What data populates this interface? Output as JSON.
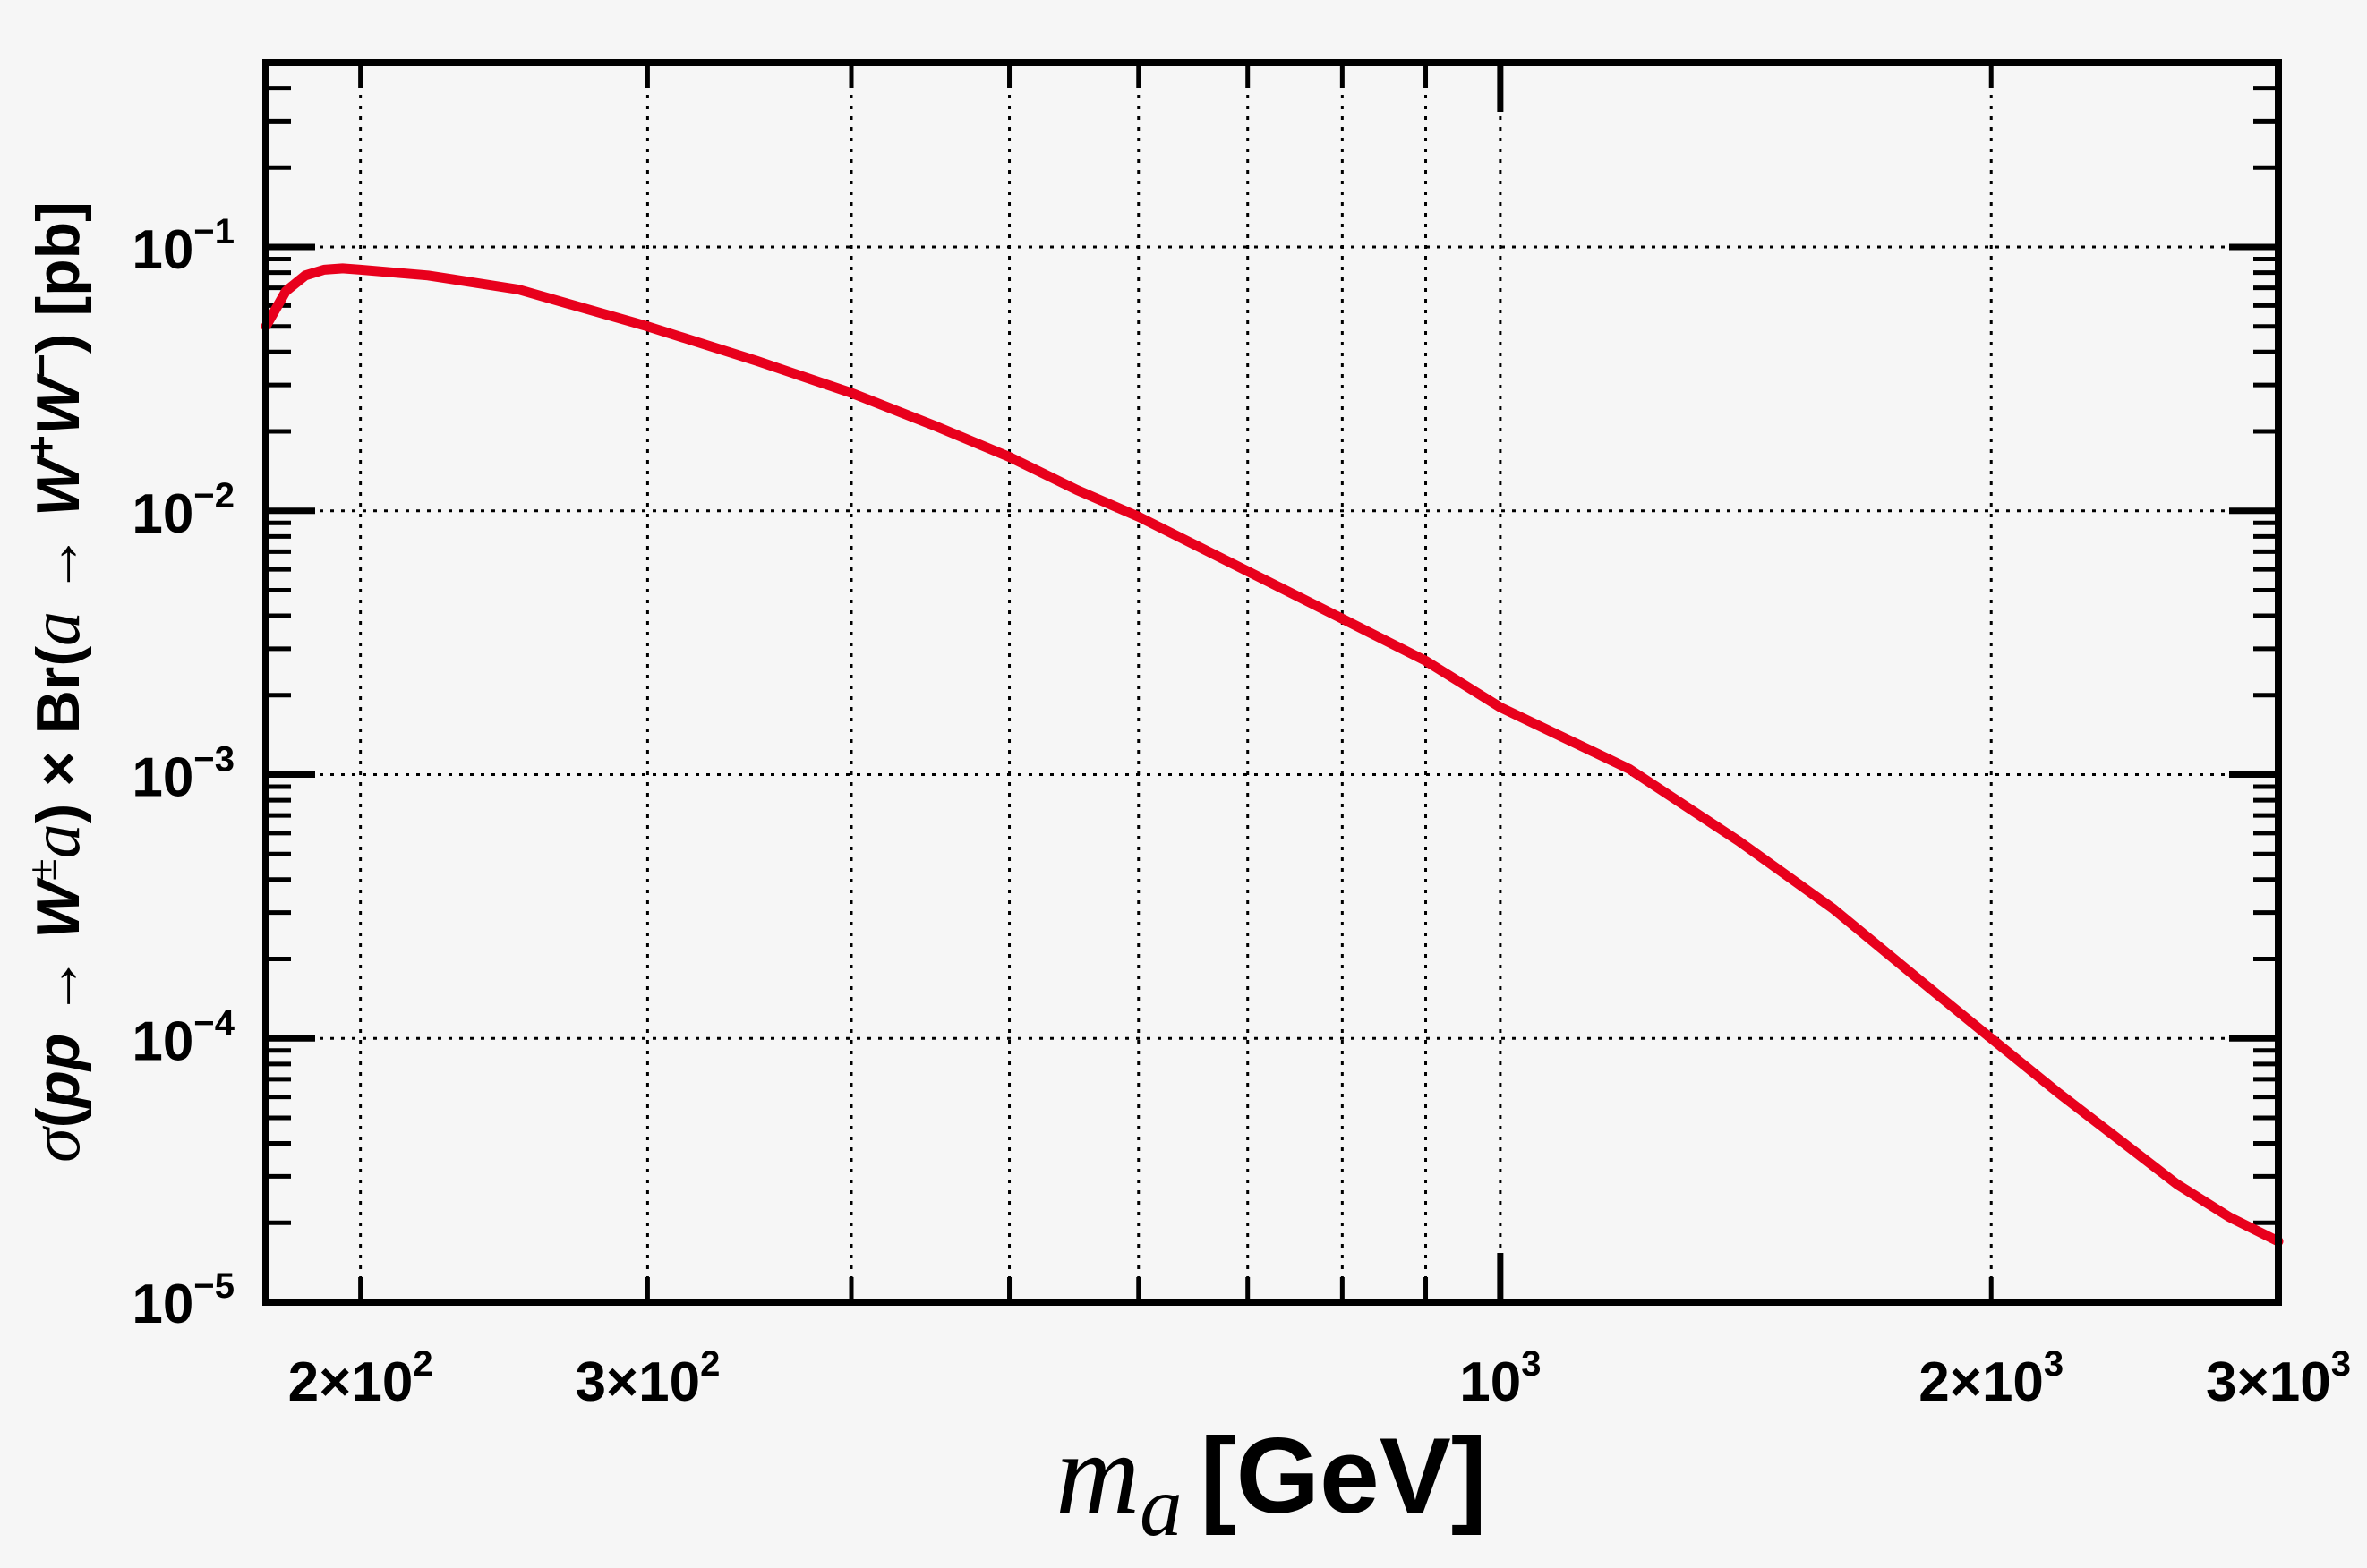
{
  "chart_data": {
    "type": "line",
    "title": "",
    "xlabel_symbol": "m",
    "xlabel_subscript": "a",
    "xlabel_unit": "[GeV]",
    "ylabel": {
      "sigma": "σ",
      "open": "(",
      "pp": "pp",
      "arrow1": " → ",
      "W1": "W",
      "pm": "±",
      "a1": "a",
      "close1": ")",
      "times": " × ",
      "Br": "Br(",
      "a2": "a",
      "arrow2": " → ",
      "W2": "W",
      "plus": "+",
      "W3": "W",
      "minus": "−",
      "close2": ")",
      "unit": " [pb]"
    },
    "x_scale": "log",
    "y_scale": "log",
    "xlim": [
      175,
      3000
    ],
    "ylim": [
      1e-05,
      0.5
    ],
    "grid": true,
    "x_ticks": [
      {
        "mant": "2×10",
        "exp": "2"
      },
      {
        "mant": "3×10",
        "exp": "2"
      },
      {
        "mant": "10",
        "exp": "3"
      },
      {
        "mant": "2×10",
        "exp": "3"
      },
      {
        "mant": "3×10",
        "exp": "3"
      }
    ],
    "y_ticks": [
      {
        "mant": "10",
        "exp": "−1"
      },
      {
        "mant": "10",
        "exp": "−2"
      },
      {
        "mant": "10",
        "exp": "−3"
      },
      {
        "mant": "10",
        "exp": "−4"
      },
      {
        "mant": "10",
        "exp": "−5"
      }
    ],
    "series": [
      {
        "color": "#e8001c",
        "x": [
          175,
          180,
          185,
          190,
          195,
          200,
          220,
          250,
          300,
          350,
          400,
          450,
          500,
          550,
          600,
          700,
          800,
          900,
          1000,
          1200,
          1400,
          1600,
          1800,
          2000,
          2200,
          2400,
          2600,
          2800,
          3000
        ],
        "y": [
          0.05,
          0.068,
          0.078,
          0.082,
          0.083,
          0.082,
          0.078,
          0.069,
          0.05,
          0.037,
          0.028,
          0.021,
          0.016,
          0.012,
          0.0095,
          0.0059,
          0.0039,
          0.0027,
          0.0018,
          0.00105,
          0.00056,
          0.00031,
          0.00017,
          0.0001,
          6.2e-05,
          4.1e-05,
          2.8e-05,
          2.1e-05,
          1.7e-05
        ]
      }
    ]
  }
}
